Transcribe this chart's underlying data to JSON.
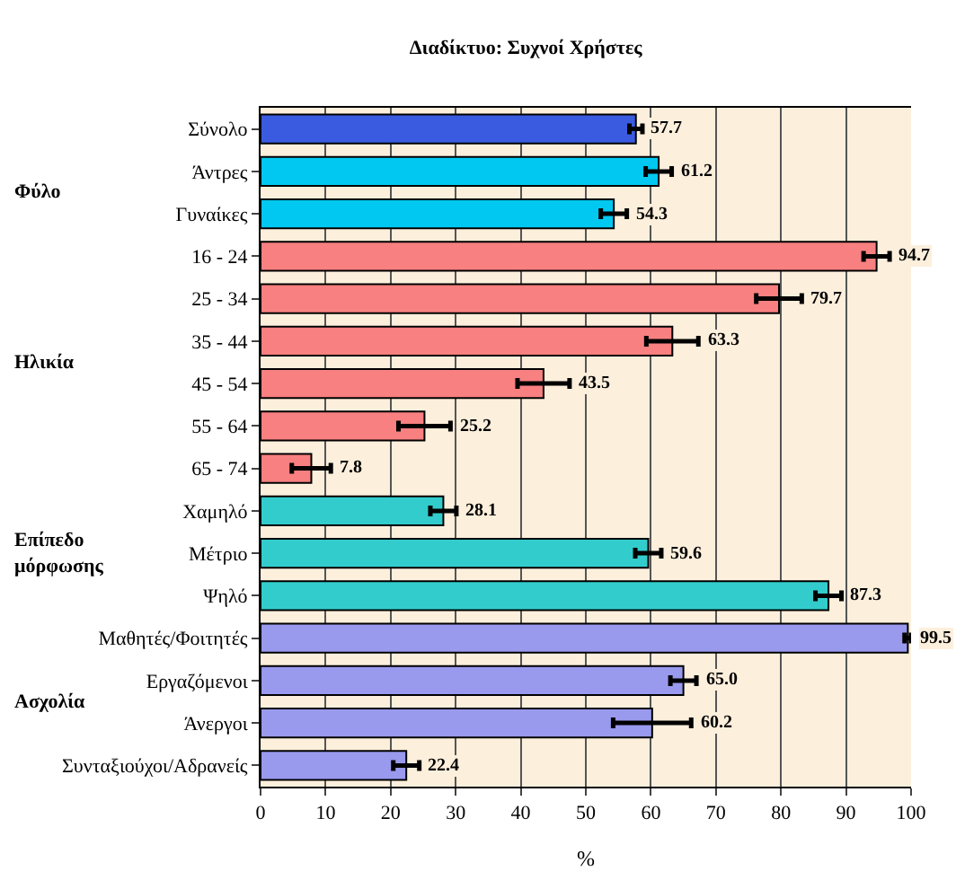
{
  "chart_data": {
    "type": "bar",
    "orientation": "horizontal",
    "title": "Διαδίκτυο: Συχνοί Χρήστες",
    "xlabel": "%",
    "categories": [
      "Σύνολο",
      "Άντρες",
      "Γυναίκες",
      "16 - 24",
      "25 - 34",
      "35 - 44",
      "45 - 54",
      "55 - 64",
      "65 - 74",
      "Χαμηλό",
      "Μέτριο",
      "Ψηλό",
      "Μαθητές/Φοιτητές",
      "Εργαζόμενοι",
      "Άνεργοι",
      "Συνταξιούχοι/Αδρανείς"
    ],
    "values": [
      57.7,
      61.2,
      54.3,
      94.7,
      79.7,
      63.3,
      43.5,
      25.2,
      7.8,
      28.1,
      59.6,
      87.3,
      99.5,
      65.0,
      60.2,
      22.4
    ],
    "value_labels": [
      "57.7",
      "61.2",
      "54.3",
      "94.7",
      "79.7",
      "63.3",
      "43.5",
      "25.2",
      "7.8",
      "28.1",
      "59.6",
      "87.3",
      "99.5",
      "65.0",
      "60.2",
      "22.4"
    ],
    "errors": [
      1,
      2,
      2,
      2,
      3.5,
      4,
      4,
      4,
      3,
      2,
      2,
      2,
      0.5,
      2,
      6,
      2
    ],
    "colors": [
      "#3a5be0",
      "#00c8f0",
      "#00c8f0",
      "#f88080",
      "#f88080",
      "#f88080",
      "#f88080",
      "#f88080",
      "#f88080",
      "#33cccc",
      "#33cccc",
      "#33cccc",
      "#9999ee",
      "#9999ee",
      "#9999ee",
      "#9999ee"
    ],
    "xlim": [
      0,
      100
    ],
    "xticks": [
      0,
      10,
      20,
      30,
      40,
      50,
      60,
      70,
      80,
      90,
      100
    ],
    "grid": "x",
    "annotations": [
      "Φύλο",
      "Ηλικία",
      "Επίπεδο μόρφωσης",
      "Ασχολία"
    ]
  }
}
